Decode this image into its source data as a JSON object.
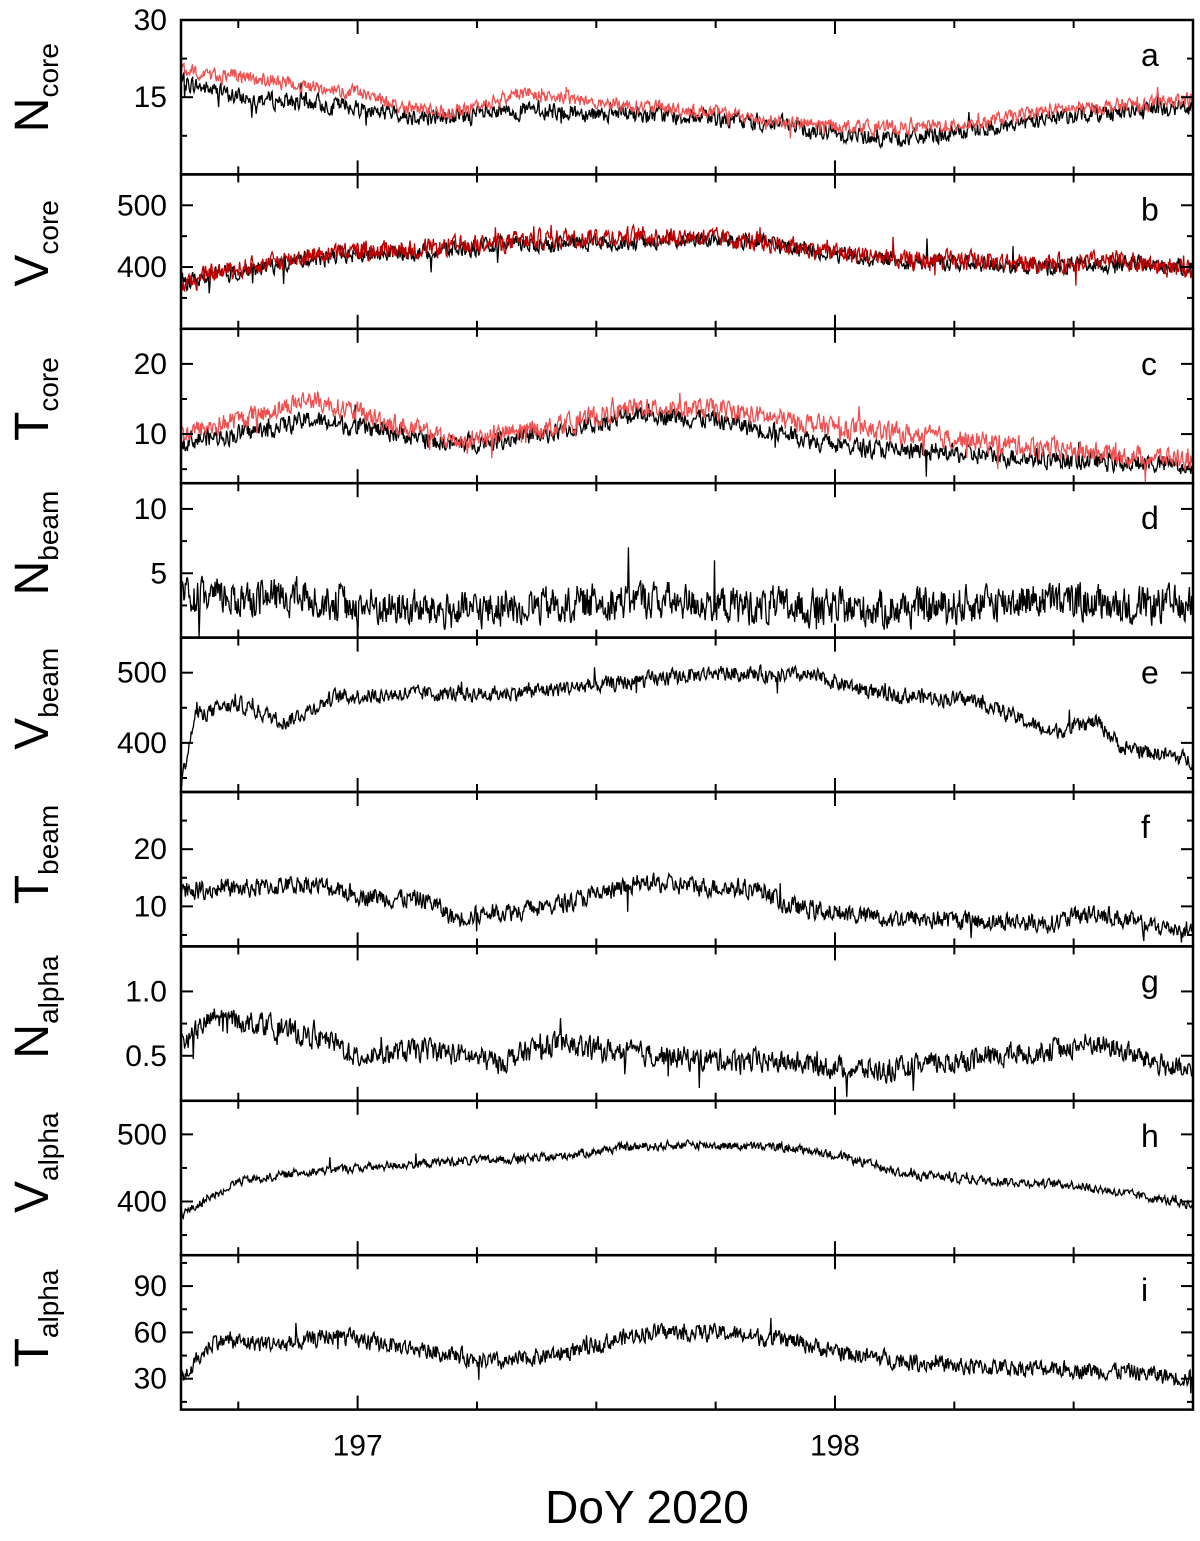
{
  "colors": {
    "black_series": "#000000",
    "red_series": "#f05050",
    "dark_red_series": "#c00000"
  },
  "chart_data": {
    "type": "line",
    "xlabel": "DoY 2020",
    "xlim": [
      196.63,
      198.75
    ],
    "xticks_major": [
      197,
      198
    ],
    "xticks_minor": [
      196.75,
      197.25,
      197.5,
      197.75,
      198.25,
      198.5,
      198.75
    ],
    "panels": [
      {
        "letter": "a",
        "ylabel_main": "N",
        "ylabel_sub": "core",
        "ylim": [
          0,
          30
        ],
        "yticks": [
          15,
          30
        ],
        "yticks_minor": [
          7.5,
          22.5
        ],
        "series": [
          {
            "color": "black",
            "anchors": [
              [
                196.63,
                18
              ],
              [
                196.75,
                15
              ],
              [
                196.9,
                14
              ],
              [
                197.0,
                13
              ],
              [
                197.1,
                11.5
              ],
              [
                197.2,
                11
              ],
              [
                197.35,
                12.5
              ],
              [
                197.5,
                12
              ],
              [
                197.75,
                11
              ],
              [
                197.9,
                9.5
              ],
              [
                198.0,
                8
              ],
              [
                198.15,
                7
              ],
              [
                198.3,
                8.5
              ],
              [
                198.45,
                11
              ],
              [
                198.55,
                12
              ],
              [
                198.75,
                13
              ]
            ],
            "noise": 1.5
          },
          {
            "color": "red",
            "anchors": [
              [
                196.63,
                20
              ],
              [
                196.75,
                19
              ],
              [
                196.9,
                17
              ],
              [
                197.0,
                16
              ],
              [
                197.1,
                13
              ],
              [
                197.2,
                12
              ],
              [
                197.35,
                16
              ],
              [
                197.5,
                14
              ],
              [
                197.75,
                12
              ],
              [
                197.9,
                10
              ],
              [
                198.0,
                9.5
              ],
              [
                198.15,
                9
              ],
              [
                198.3,
                10
              ],
              [
                198.45,
                12.5
              ],
              [
                198.55,
                13
              ],
              [
                198.75,
                14.5
              ]
            ],
            "noise": 1.2
          }
        ]
      },
      {
        "letter": "b",
        "ylabel_main": "V",
        "ylabel_sub": "core",
        "ylim": [
          300,
          550
        ],
        "yticks": [
          400,
          500
        ],
        "yticks_minor": [
          350,
          450
        ],
        "series": [
          {
            "color": "black",
            "anchors": [
              [
                196.63,
                375
              ],
              [
                196.7,
                385
              ],
              [
                196.8,
                400
              ],
              [
                196.9,
                415
              ],
              [
                197.0,
                420
              ],
              [
                197.15,
                425
              ],
              [
                197.3,
                435
              ],
              [
                197.5,
                440
              ],
              [
                197.7,
                445
              ],
              [
                197.85,
                440
              ],
              [
                198.0,
                420
              ],
              [
                198.15,
                410
              ],
              [
                198.3,
                405
              ],
              [
                198.45,
                400
              ],
              [
                198.6,
                405
              ],
              [
                198.75,
                400
              ]
            ],
            "noise": 12
          },
          {
            "color": "darkred",
            "anchors": [
              [
                196.63,
                370
              ],
              [
                196.7,
                390
              ],
              [
                196.8,
                405
              ],
              [
                196.9,
                420
              ],
              [
                197.0,
                425
              ],
              [
                197.15,
                430
              ],
              [
                197.3,
                440
              ],
              [
                197.5,
                450
              ],
              [
                197.7,
                450
              ],
              [
                197.85,
                440
              ],
              [
                198.0,
                425
              ],
              [
                198.15,
                410
              ],
              [
                198.3,
                410
              ],
              [
                198.45,
                405
              ],
              [
                198.6,
                410
              ],
              [
                198.75,
                395
              ]
            ],
            "noise": 14
          }
        ]
      },
      {
        "letter": "c",
        "ylabel_main": "T",
        "ylabel_sub": "core",
        "ylim": [
          3,
          25
        ],
        "yticks": [
          10,
          20
        ],
        "yticks_minor": [
          5,
          15
        ],
        "series": [
          {
            "color": "black",
            "anchors": [
              [
                196.63,
                9
              ],
              [
                196.75,
                10
              ],
              [
                196.9,
                12
              ],
              [
                197.0,
                11
              ],
              [
                197.1,
                10
              ],
              [
                197.2,
                8.5
              ],
              [
                197.4,
                10
              ],
              [
                197.6,
                13
              ],
              [
                197.75,
                12
              ],
              [
                197.9,
                10
              ],
              [
                198.0,
                8.5
              ],
              [
                198.15,
                7.5
              ],
              [
                198.3,
                7
              ],
              [
                198.45,
                6.5
              ],
              [
                198.6,
                6
              ],
              [
                198.75,
                5.5
              ]
            ],
            "noise": 1.2
          },
          {
            "color": "red",
            "anchors": [
              [
                196.63,
                10
              ],
              [
                196.75,
                12
              ],
              [
                196.9,
                15
              ],
              [
                197.0,
                13
              ],
              [
                197.1,
                11
              ],
              [
                197.2,
                9
              ],
              [
                197.4,
                11
              ],
              [
                197.6,
                14
              ],
              [
                197.75,
                13.5
              ],
              [
                197.9,
                12
              ],
              [
                198.0,
                11
              ],
              [
                198.15,
                10
              ],
              [
                198.3,
                9
              ],
              [
                198.45,
                8
              ],
              [
                198.6,
                7
              ],
              [
                198.75,
                6.5
              ]
            ],
            "noise": 1.3
          }
        ]
      },
      {
        "letter": "d",
        "ylabel_main": "N",
        "ylabel_sub": "beam",
        "ylim": [
          0,
          12
        ],
        "yticks": [
          5,
          10
        ],
        "yticks_minor": [
          2.5,
          7.5
        ],
        "series": [
          {
            "color": "black",
            "anchors": [
              [
                196.63,
                3
              ],
              [
                196.9,
                3.2
              ],
              [
                197.0,
                2.5
              ],
              [
                197.2,
                2
              ],
              [
                197.4,
                2.5
              ],
              [
                197.6,
                3
              ],
              [
                197.8,
                2.5
              ],
              [
                198.0,
                2.2
              ],
              [
                198.2,
                2.3
              ],
              [
                198.4,
                3
              ],
              [
                198.6,
                2.5
              ],
              [
                198.75,
                2.5
              ]
            ],
            "noise": 1.3
          }
        ]
      },
      {
        "letter": "e",
        "ylabel_main": "V",
        "ylabel_sub": "beam",
        "ylim": [
          330,
          550
        ],
        "yticks": [
          400,
          500
        ],
        "yticks_minor": [
          350,
          450
        ],
        "series": [
          {
            "color": "black",
            "anchors": [
              [
                196.63,
                340
              ],
              [
                196.66,
                440
              ],
              [
                196.75,
                455
              ],
              [
                196.85,
                430
              ],
              [
                196.95,
                465
              ],
              [
                197.1,
                470
              ],
              [
                197.3,
                470
              ],
              [
                197.55,
                485
              ],
              [
                197.75,
                500
              ],
              [
                197.95,
                495
              ],
              [
                198.1,
                470
              ],
              [
                198.3,
                460
              ],
              [
                198.45,
                415
              ],
              [
                198.55,
                430
              ],
              [
                198.6,
                395
              ],
              [
                198.75,
                375
              ]
            ],
            "noise": 10
          }
        ]
      },
      {
        "letter": "f",
        "ylabel_main": "T",
        "ylabel_sub": "beam",
        "ylim": [
          3,
          30
        ],
        "yticks": [
          10,
          20
        ],
        "yticks_minor": [
          5,
          15,
          25
        ],
        "series": [
          {
            "color": "black",
            "anchors": [
              [
                196.63,
                13
              ],
              [
                196.75,
                13
              ],
              [
                196.9,
                14
              ],
              [
                197.0,
                12
              ],
              [
                197.15,
                11
              ],
              [
                197.2,
                8
              ],
              [
                197.4,
                10
              ],
              [
                197.6,
                14
              ],
              [
                197.85,
                13
              ],
              [
                197.9,
                10
              ],
              [
                198.1,
                8
              ],
              [
                198.3,
                7.5
              ],
              [
                198.45,
                7
              ],
              [
                198.55,
                9
              ],
              [
                198.65,
                6.5
              ],
              [
                198.75,
                6
              ]
            ],
            "noise": 1.5
          }
        ]
      },
      {
        "letter": "g",
        "ylabel_main": "N",
        "ylabel_sub": "alpha",
        "ylim": [
          0.15,
          1.35
        ],
        "yticks": [
          0.5,
          1.0
        ],
        "yticks_minor": [
          0.75
        ],
        "series": [
          {
            "color": "black",
            "anchors": [
              [
                196.63,
                0.6
              ],
              [
                196.7,
                0.8
              ],
              [
                196.8,
                0.75
              ],
              [
                196.95,
                0.6
              ],
              [
                197.0,
                0.5
              ],
              [
                197.15,
                0.55
              ],
              [
                197.3,
                0.45
              ],
              [
                197.4,
                0.6
              ],
              [
                197.5,
                0.55
              ],
              [
                197.7,
                0.48
              ],
              [
                197.9,
                0.45
              ],
              [
                198.1,
                0.38
              ],
              [
                198.3,
                0.48
              ],
              [
                198.45,
                0.55
              ],
              [
                198.55,
                0.6
              ],
              [
                198.75,
                0.35
              ]
            ],
            "noise": 0.08
          }
        ]
      },
      {
        "letter": "h",
        "ylabel_main": "V",
        "ylabel_sub": "alpha",
        "ylim": [
          320,
          550
        ],
        "yticks": [
          400,
          500
        ],
        "yticks_minor": [
          350,
          450
        ],
        "series": [
          {
            "color": "black",
            "anchors": [
              [
                196.63,
                380
              ],
              [
                196.75,
                430
              ],
              [
                196.9,
                445
              ],
              [
                197.0,
                450
              ],
              [
                197.2,
                460
              ],
              [
                197.4,
                465
              ],
              [
                197.55,
                480
              ],
              [
                197.7,
                485
              ],
              [
                197.9,
                480
              ],
              [
                198.0,
                470
              ],
              [
                198.15,
                440
              ],
              [
                198.35,
                430
              ],
              [
                198.5,
                425
              ],
              [
                198.75,
                395
              ]
            ],
            "noise": 6
          }
        ]
      },
      {
        "letter": "i",
        "ylabel_main": "T",
        "ylabel_sub": "alpha",
        "ylim": [
          10,
          110
        ],
        "yticks": [
          30,
          60,
          90
        ],
        "yticks_minor": [
          15,
          45,
          75,
          105
        ],
        "series": [
          {
            "color": "black",
            "anchors": [
              [
                196.63,
                30
              ],
              [
                196.7,
                55
              ],
              [
                196.85,
                52
              ],
              [
                196.95,
                58
              ],
              [
                197.0,
                55
              ],
              [
                197.15,
                48
              ],
              [
                197.3,
                40
              ],
              [
                197.45,
                48
              ],
              [
                197.6,
                60
              ],
              [
                197.75,
                60
              ],
              [
                197.9,
                55
              ],
              [
                198.05,
                45
              ],
              [
                198.25,
                38
              ],
              [
                198.4,
                37
              ],
              [
                198.6,
                35
              ],
              [
                198.75,
                30
              ]
            ],
            "noise": 5
          }
        ]
      }
    ]
  }
}
